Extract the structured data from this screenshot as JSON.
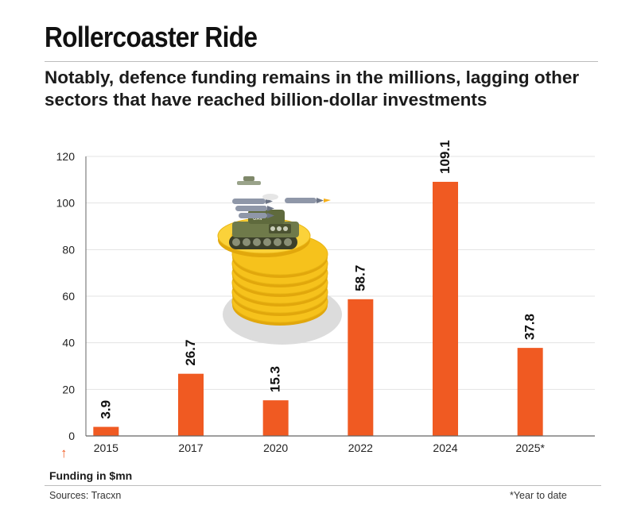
{
  "header": {
    "title": "Rollercoaster Ride",
    "subtitle": "Notably, defence funding remains in the millions, lagging other sectors that have reached billion-dollar investments"
  },
  "footer": {
    "arrow": "↑",
    "funding_label": "Funding in $mn",
    "source": "Sources: Tracxn",
    "footnote": "*Year to date"
  },
  "colors": {
    "bar": "#f05a22",
    "grid": "#e3e3e3",
    "axis": "#666666",
    "coin": "#f6c21c",
    "tank": "#6f7a4a"
  },
  "illustration": {
    "description_icon": "tank-on-coins-icon",
    "tank_label": "UAV"
  },
  "chart_data": {
    "type": "bar",
    "categories": [
      "2015",
      "2017",
      "2020",
      "2022",
      "2024",
      "2025*"
    ],
    "values": [
      3.9,
      26.7,
      15.3,
      58.7,
      109.1,
      37.8
    ],
    "data_labels": [
      "3.9",
      "26.7",
      "15.3",
      "58.7",
      "109.1",
      "37.8"
    ],
    "yticks": [
      "0",
      "20",
      "40",
      "60",
      "80",
      "100",
      "120"
    ],
    "ylim": [
      0,
      120
    ],
    "grid": true,
    "legend": "none",
    "ylabel": "Funding in $mn",
    "xlabel": ""
  }
}
